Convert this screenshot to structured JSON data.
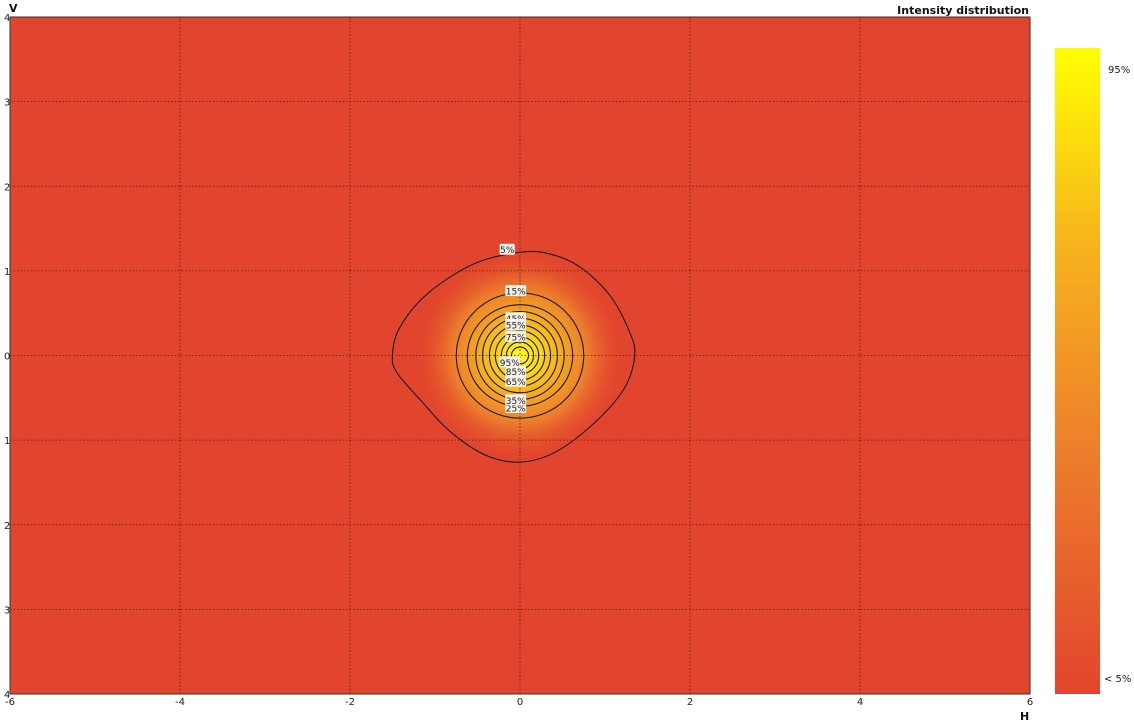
{
  "chart_data": {
    "type": "heatmap",
    "title": "Intensity distribution",
    "xlabel": "H",
    "ylabel": "V",
    "xlim": [
      -6,
      6
    ],
    "ylim": [
      -4,
      4
    ],
    "x_ticks": [
      {
        "value": -6,
        "label": "-6"
      },
      {
        "value": -4,
        "label": "-4"
      },
      {
        "value": -2,
        "label": "-2"
      },
      {
        "value": 0,
        "label": "0"
      },
      {
        "value": 2,
        "label": "2"
      },
      {
        "value": 4,
        "label": "4"
      },
      {
        "value": 6,
        "label": "6"
      }
    ],
    "y_ticks": [
      {
        "value": 4,
        "label": "4"
      },
      {
        "value": 3,
        "label": "3"
      },
      {
        "value": 2,
        "label": "2"
      },
      {
        "value": 1,
        "label": "1"
      },
      {
        "value": 0,
        "label": "0"
      },
      {
        "value": -1,
        "label": "1"
      },
      {
        "value": -2,
        "label": "2"
      },
      {
        "value": -3,
        "label": "3"
      },
      {
        "value": -4,
        "label": "4"
      }
    ],
    "grid": true,
    "background_color": "#e2452d",
    "peak_color": "#ffee00",
    "colorbar": {
      "top_label": "95%",
      "bottom_label": "< 5%",
      "top_color": "#ffff00",
      "mid_color": "#f7a21a",
      "bottom_color": "#e2452d"
    },
    "contours": [
      {
        "level": "5%",
        "label": "5%",
        "shape": "blob",
        "points": [
          [
            -1.5,
            0
          ],
          [
            -1.42,
            0.32
          ],
          [
            -1.1,
            0.72
          ],
          [
            -0.55,
            1.08
          ],
          [
            0,
            1.22
          ],
          [
            0.35,
            1.2
          ],
          [
            0.7,
            1.05
          ],
          [
            1.05,
            0.72
          ],
          [
            1.28,
            0.3
          ],
          [
            1.35,
            0
          ],
          [
            1.22,
            -0.4
          ],
          [
            0.85,
            -0.82
          ],
          [
            0.4,
            -1.15
          ],
          [
            0,
            -1.26
          ],
          [
            -0.4,
            -1.18
          ],
          [
            -0.82,
            -0.9
          ],
          [
            -1.15,
            -0.55
          ],
          [
            -1.45,
            -0.2
          ]
        ],
        "label_at": [
          -0.15,
          1.25
        ]
      },
      {
        "level": "15%",
        "label": "15%",
        "rx": 0.75,
        "ry": 0.74,
        "label_at": [
          -0.05,
          0.76
        ]
      },
      {
        "level": "25%",
        "label": "25%",
        "rx": 0.62,
        "ry": 0.6,
        "label_at": [
          -0.05,
          -0.62
        ]
      },
      {
        "level": "35%",
        "label": "35%",
        "rx": 0.52,
        "ry": 0.52,
        "label_at": [
          -0.05,
          -0.53
        ]
      },
      {
        "level": "45%",
        "label": "45%",
        "rx": 0.44,
        "ry": 0.44,
        "label_at": [
          -0.05,
          0.44
        ]
      },
      {
        "level": "55%",
        "label": "55%",
        "rx": 0.36,
        "ry": 0.36,
        "label_at": [
          -0.05,
          0.36
        ]
      },
      {
        "level": "65%",
        "label": "65%",
        "rx": 0.29,
        "ry": 0.29,
        "label_at": [
          -0.05,
          -0.31
        ]
      },
      {
        "level": "75%",
        "label": "75%",
        "rx": 0.22,
        "ry": 0.22,
        "label_at": [
          -0.05,
          0.22
        ]
      },
      {
        "level": "85%",
        "label": "85%",
        "rx": 0.16,
        "ry": 0.16,
        "label_at": [
          -0.05,
          -0.19
        ]
      },
      {
        "level": "95%",
        "label": "95%",
        "rx": 0.1,
        "ry": 0.1,
        "label_at": [
          -0.12,
          -0.08
        ]
      }
    ]
  }
}
